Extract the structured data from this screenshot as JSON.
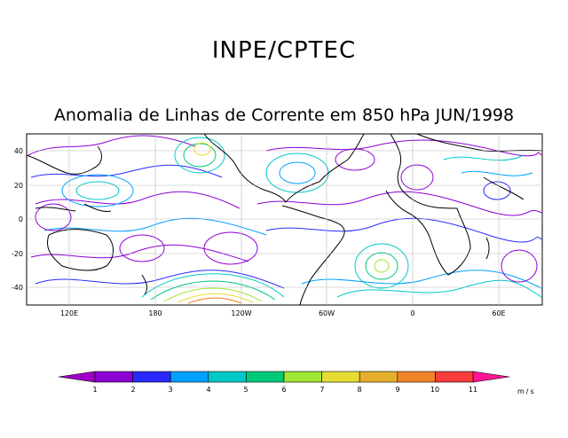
{
  "header": {
    "organization": "INPE/CPTEC",
    "title": "Anomalia de Linhas de Corrente em 850 hPa JUN/1998"
  },
  "map": {
    "lat_ticks": [
      "40",
      "20",
      "0",
      "-20",
      "-40"
    ],
    "lon_ticks": [
      "120E",
      "180",
      "120W",
      "60W",
      "0",
      "60E"
    ],
    "streamline_colors": [
      "#8c00d4",
      "#2a2aff",
      "#00a0ff",
      "#00c8c8",
      "#00c878",
      "#a0e632",
      "#e6dc32",
      "#e6af2d",
      "#f08228",
      "#fa3c3c"
    ]
  },
  "colorbar": {
    "labels": [
      "1",
      "2",
      "3",
      "4",
      "5",
      "6",
      "7",
      "8",
      "9",
      "10",
      "11"
    ],
    "unit": "m/s",
    "colors": [
      "#8c00d4",
      "#2a2aff",
      "#00a0ff",
      "#00c8c8",
      "#00c878",
      "#a0e632",
      "#e6dc32",
      "#e6af2d",
      "#f08228",
      "#fa3c3c"
    ],
    "low_color": "#a000c8",
    "high_color": "#ff1493"
  }
}
